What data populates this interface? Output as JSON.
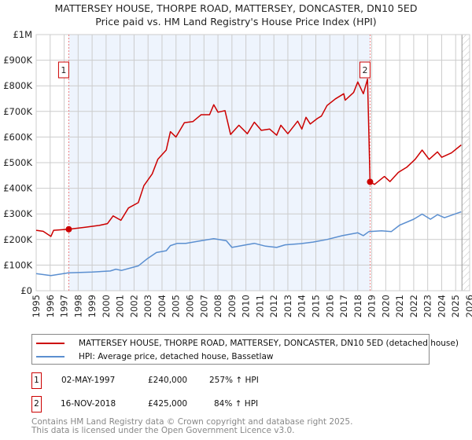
{
  "title": "MATTERSEY HOUSE, THORPE ROAD, MATTERSEY, DONCASTER, DN10 5ED",
  "subtitle": "Price paid vs. HM Land Registry's House Price Index (HPI)",
  "chart_data": {
    "type": "line",
    "title": "MATTERSEY HOUSE, THORPE ROAD, MATTERSEY, DONCASTER, DN10 5ED",
    "subtitle": "Price paid vs. HM Land Registry's House Price Index (HPI)",
    "xlim": [
      1995,
      2026
    ],
    "ylim": [
      0,
      1000000
    ],
    "x_ticks": [
      "1995",
      "1996",
      "1997",
      "1998",
      "1999",
      "2000",
      "2001",
      "2002",
      "2003",
      "2004",
      "2005",
      "2006",
      "2007",
      "2008",
      "2009",
      "2010",
      "2011",
      "2012",
      "2013",
      "2014",
      "2015",
      "2016",
      "2017",
      "2018",
      "2019",
      "2020",
      "2021",
      "2022",
      "2023",
      "2024",
      "2025",
      "2026"
    ],
    "y_ticks": [
      {
        "v": 0,
        "label": "£0"
      },
      {
        "v": 100000,
        "label": "£100K"
      },
      {
        "v": 200000,
        "label": "£200K"
      },
      {
        "v": 300000,
        "label": "£300K"
      },
      {
        "v": 400000,
        "label": "£400K"
      },
      {
        "v": 500000,
        "label": "£500K"
      },
      {
        "v": 600000,
        "label": "£600K"
      },
      {
        "v": 700000,
        "label": "£700K"
      },
      {
        "v": 800000,
        "label": "£800K"
      },
      {
        "v": 900000,
        "label": "£900K"
      },
      {
        "v": 1000000,
        "label": "£1M"
      }
    ],
    "grid": true,
    "series": [
      {
        "name": "MATTERSEY HOUSE, THORPE ROAD, MATTERSEY, DONCASTER, DN10 5ED (detached house)",
        "color": "#cc0000",
        "points": [
          [
            1995.0,
            236000
          ],
          [
            1995.5,
            232000
          ],
          [
            1996.05,
            212000
          ],
          [
            1996.25,
            236000
          ],
          [
            1997.33,
            240000
          ],
          [
            1998.5,
            248000
          ],
          [
            1999.5,
            255000
          ],
          [
            2000.1,
            262000
          ],
          [
            2000.5,
            292000
          ],
          [
            2001.06,
            275000
          ],
          [
            2001.6,
            323000
          ],
          [
            2002.3,
            344000
          ],
          [
            2002.7,
            410000
          ],
          [
            2003.3,
            456000
          ],
          [
            2003.7,
            513000
          ],
          [
            2004.3,
            549000
          ],
          [
            2004.6,
            621000
          ],
          [
            2005.0,
            600000
          ],
          [
            2005.6,
            656000
          ],
          [
            2006.2,
            660000
          ],
          [
            2006.8,
            687000
          ],
          [
            2007.4,
            687000
          ],
          [
            2007.7,
            726000
          ],
          [
            2008.0,
            697000
          ],
          [
            2008.5,
            703000
          ],
          [
            2008.9,
            610000
          ],
          [
            2009.5,
            646000
          ],
          [
            2010.1,
            613000
          ],
          [
            2010.6,
            658000
          ],
          [
            2011.1,
            626000
          ],
          [
            2011.7,
            631000
          ],
          [
            2012.2,
            607000
          ],
          [
            2012.5,
            646000
          ],
          [
            2013.0,
            613000
          ],
          [
            2013.7,
            662000
          ],
          [
            2014.0,
            631000
          ],
          [
            2014.3,
            677000
          ],
          [
            2014.6,
            651000
          ],
          [
            2015.1,
            672000
          ],
          [
            2015.4,
            682000
          ],
          [
            2015.8,
            723000
          ],
          [
            2016.4,
            749000
          ],
          [
            2017.0,
            769000
          ],
          [
            2017.1,
            744000
          ],
          [
            2017.7,
            774000
          ],
          [
            2018.0,
            815000
          ],
          [
            2018.4,
            769000
          ],
          [
            2018.7,
            826000
          ],
          [
            2018.88,
            425000
          ],
          [
            2019.2,
            415000
          ],
          [
            2019.9,
            446000
          ],
          [
            2020.3,
            426000
          ],
          [
            2020.9,
            462000
          ],
          [
            2021.5,
            482000
          ],
          [
            2022.1,
            513000
          ],
          [
            2022.6,
            549000
          ],
          [
            2023.1,
            513000
          ],
          [
            2023.7,
            542000
          ],
          [
            2024.0,
            521000
          ],
          [
            2024.7,
            538000
          ],
          [
            2025.4,
            569000
          ]
        ]
      },
      {
        "name": "HPI: Average price, detached house, Bassetlaw",
        "color": "#5b8fd0",
        "points": [
          [
            1995.0,
            67000
          ],
          [
            1996.05,
            59000
          ],
          [
            1997.3,
            70000
          ],
          [
            1999.0,
            73000
          ],
          [
            2000.3,
            77000
          ],
          [
            2000.7,
            84000
          ],
          [
            2001.1,
            79000
          ],
          [
            2002.3,
            97000
          ],
          [
            2002.9,
            123000
          ],
          [
            2003.6,
            149000
          ],
          [
            2004.3,
            156000
          ],
          [
            2004.6,
            176000
          ],
          [
            2005.1,
            185000
          ],
          [
            2005.7,
            185000
          ],
          [
            2006.8,
            195000
          ],
          [
            2007.7,
            203000
          ],
          [
            2008.6,
            195000
          ],
          [
            2009.0,
            169000
          ],
          [
            2010.0,
            179000
          ],
          [
            2010.6,
            185000
          ],
          [
            2011.4,
            174000
          ],
          [
            2012.2,
            169000
          ],
          [
            2012.8,
            179000
          ],
          [
            2013.8,
            183000
          ],
          [
            2014.8,
            190000
          ],
          [
            2015.8,
            200000
          ],
          [
            2016.9,
            215000
          ],
          [
            2018.0,
            226000
          ],
          [
            2018.4,
            215000
          ],
          [
            2018.8,
            231000
          ],
          [
            2019.7,
            234000
          ],
          [
            2020.4,
            231000
          ],
          [
            2021.0,
            256000
          ],
          [
            2022.0,
            279000
          ],
          [
            2022.6,
            299000
          ],
          [
            2023.2,
            279000
          ],
          [
            2023.7,
            297000
          ],
          [
            2024.2,
            285000
          ],
          [
            2025.4,
            308000
          ]
        ]
      }
    ],
    "sales": [
      {
        "id": "1",
        "x": 1997.33,
        "value": 240000
      },
      {
        "id": "2",
        "x": 2018.88,
        "value": 425000
      }
    ],
    "data_end": 2025.45
  },
  "legend": {
    "red": "MATTERSEY HOUSE, THORPE ROAD, MATTERSEY, DONCASTER, DN10 5ED (detached house)",
    "blue": "HPI: Average price, detached house, Bassetlaw"
  },
  "table": [
    {
      "id": "1",
      "date": "02-MAY-1997",
      "price": "£240,000",
      "hpi": "257% ↑ HPI"
    },
    {
      "id": "2",
      "date": "16-NOV-2018",
      "price": "£425,000",
      "hpi": "84% ↑ HPI"
    }
  ],
  "footer": [
    "Contains HM Land Registry data © Crown copyright and database right 2025.",
    "This data is licensed under the Open Government Licence v3.0."
  ]
}
